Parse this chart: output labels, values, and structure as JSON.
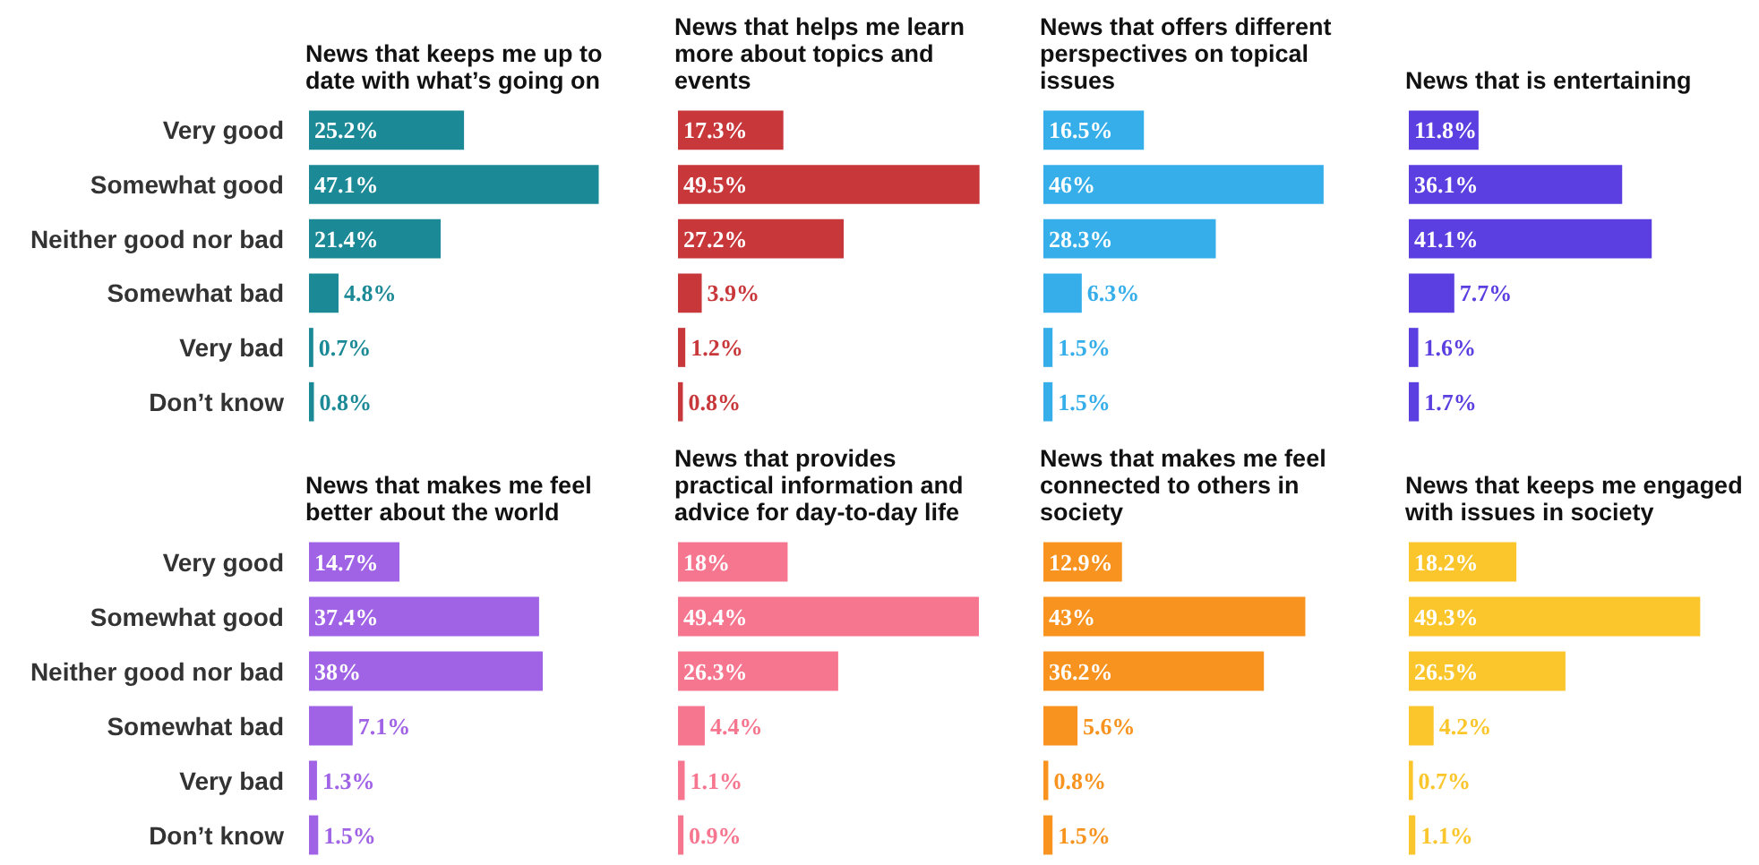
{
  "chart_data": [
    {
      "type": "bar",
      "orientation": "horizontal",
      "title": "News that keeps me up to date with what’s going on",
      "categories": [
        "Very good",
        "Somewhat good",
        "Neither good nor bad",
        "Somewhat bad",
        "Very bad",
        "Don’t know"
      ],
      "values": [
        25.2,
        47.1,
        21.4,
        4.8,
        0.7,
        0.8
      ],
      "value_labels": [
        "25.2%",
        "47.1%",
        "21.4%",
        "4.8%",
        "0.7%",
        "0.8%"
      ],
      "color": "#1b8a96",
      "tick_labels": "y"
    },
    {
      "type": "bar",
      "orientation": "horizontal",
      "title": "News that helps me learn more about topics and events",
      "categories": [
        "Very good",
        "Somewhat good",
        "Neither good nor bad",
        "Somewhat bad",
        "Very bad",
        "Don’t know"
      ],
      "values": [
        17.3,
        49.5,
        27.2,
        3.9,
        1.2,
        0.8
      ],
      "value_labels": [
        "17.3%",
        "49.5%",
        "27.2%",
        "3.9%",
        "1.2%",
        "0.8%"
      ],
      "color": "#c8373a",
      "tick_labels": false
    },
    {
      "type": "bar",
      "orientation": "horizontal",
      "title": "News that offers different perspectives on topical issues",
      "categories": [
        "Very good",
        "Somewhat good",
        "Neither good nor bad",
        "Somewhat bad",
        "Very bad",
        "Don’t know"
      ],
      "values": [
        16.5,
        46,
        28.3,
        6.3,
        1.5,
        1.5
      ],
      "value_labels": [
        "16.5%",
        "46%",
        "28.3%",
        "6.3%",
        "1.5%",
        "1.5%"
      ],
      "color": "#35aeea",
      "tick_labels": false
    },
    {
      "type": "bar",
      "orientation": "horizontal",
      "title": "News that is entertaining",
      "categories": [
        "Very good",
        "Somewhat good",
        "Neither good nor bad",
        "Somewhat bad",
        "Very bad",
        "Don’t know"
      ],
      "values": [
        11.8,
        36.1,
        41.1,
        7.7,
        1.6,
        1.7
      ],
      "value_labels": [
        "11.8%",
        "36.1%",
        "41.1%",
        "7.7%",
        "1.6%",
        "1.7%"
      ],
      "color": "#5b3fe0",
      "tick_labels": false
    },
    {
      "type": "bar",
      "orientation": "horizontal",
      "title": "News that makes me feel better about the world",
      "categories": [
        "Very good",
        "Somewhat good",
        "Neither good nor bad",
        "Somewhat bad",
        "Very bad",
        "Don’t know"
      ],
      "values": [
        14.7,
        37.4,
        38,
        7.1,
        1.3,
        1.5
      ],
      "value_labels": [
        "14.7%",
        "37.4%",
        "38%",
        "7.1%",
        "1.3%",
        "1.5%"
      ],
      "color": "#a063e6",
      "tick_labels": "y"
    },
    {
      "type": "bar",
      "orientation": "horizontal",
      "title": "News that provides practical information and advice for day-to-day life",
      "categories": [
        "Very good",
        "Somewhat good",
        "Neither good nor bad",
        "Somewhat bad",
        "Very bad",
        "Don’t know"
      ],
      "values": [
        18,
        49.4,
        26.3,
        4.4,
        1.1,
        0.9
      ],
      "value_labels": [
        "18%",
        "49.4%",
        "26.3%",
        "4.4%",
        "1.1%",
        "0.9%"
      ],
      "color": "#f7768f",
      "tick_labels": false
    },
    {
      "type": "bar",
      "orientation": "horizontal",
      "title": "News that makes me feel connected to others in society",
      "categories": [
        "Very good",
        "Somewhat good",
        "Neither good nor bad",
        "Somewhat bad",
        "Very bad",
        "Don’t know"
      ],
      "values": [
        12.9,
        43,
        36.2,
        5.6,
        0.8,
        1.5
      ],
      "value_labels": [
        "12.9%",
        "43%",
        "36.2%",
        "5.6%",
        "0.8%",
        "1.5%"
      ],
      "color": "#f7931e",
      "tick_labels": false
    },
    {
      "type": "bar",
      "orientation": "horizontal",
      "title": "News that keeps me engaged with issues in society",
      "categories": [
        "Very good",
        "Somewhat good",
        "Neither good nor bad",
        "Somewhat bad",
        "Very bad",
        "Don’t know"
      ],
      "values": [
        18.2,
        49.3,
        26.5,
        4.2,
        0.7,
        1.1
      ],
      "value_labels": [
        "18.2%",
        "49.3%",
        "26.5%",
        "4.2%",
        "0.7%",
        "1.1%"
      ],
      "color": "#fbc62b",
      "tick_labels": false
    }
  ]
}
